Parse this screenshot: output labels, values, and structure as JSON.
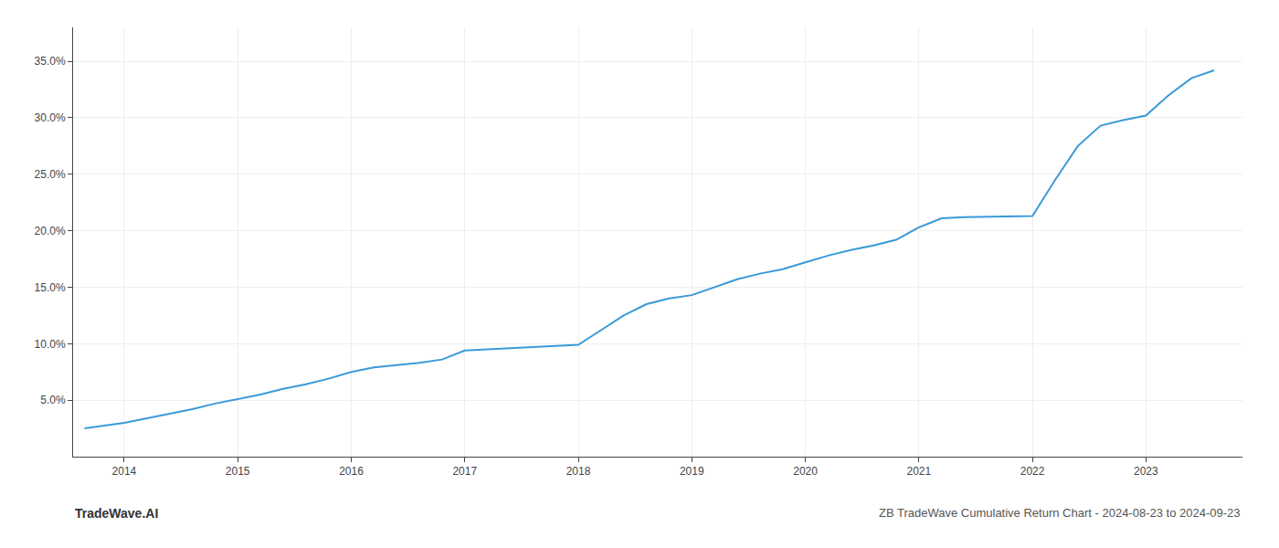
{
  "chart_data": {
    "type": "line",
    "title": "ZB TradeWave Cumulative Return Chart - 2024-08-23 to 2024-09-23",
    "annotations": [
      "TradeWave.AI"
    ],
    "x": [
      2013.65,
      2013.8,
      2014.0,
      2014.2,
      2014.4,
      2014.6,
      2014.8,
      2015.0,
      2015.2,
      2015.4,
      2015.6,
      2015.8,
      2016.0,
      2016.2,
      2016.4,
      2016.6,
      2016.8,
      2017.0,
      2017.2,
      2017.4,
      2017.6,
      2017.8,
      2018.0,
      2018.2,
      2018.4,
      2018.6,
      2018.8,
      2019.0,
      2019.2,
      2019.4,
      2019.6,
      2019.8,
      2020.0,
      2020.2,
      2020.4,
      2020.6,
      2020.8,
      2021.0,
      2021.2,
      2021.4,
      2022.0,
      2022.2,
      2022.4,
      2022.6,
      2022.8,
      2023.0,
      2023.2,
      2023.4,
      2023.6
    ],
    "values": [
      2.5,
      2.7,
      3.0,
      3.4,
      3.8,
      4.2,
      4.7,
      5.1,
      5.5,
      6.0,
      6.4,
      6.9,
      7.5,
      7.9,
      8.1,
      8.3,
      8.6,
      9.4,
      9.5,
      9.6,
      9.7,
      9.8,
      9.9,
      11.2,
      12.5,
      13.5,
      14.0,
      14.3,
      15.0,
      15.7,
      16.2,
      16.6,
      17.2,
      17.8,
      18.3,
      18.7,
      19.2,
      20.3,
      21.1,
      21.2,
      21.3,
      24.5,
      27.5,
      29.3,
      29.8,
      30.2,
      32.0,
      33.5,
      34.2
    ],
    "color": "#3a9ad9",
    "xlim": [
      2013.55,
      2023.85
    ],
    "xticks": [
      2014,
      2015,
      2016,
      2017,
      2018,
      2019,
      2020,
      2021,
      2022,
      2023
    ],
    "ylim": [
      0,
      38
    ],
    "yticks": [
      {
        "value": 5.0,
        "label": "5.0%"
      },
      {
        "value": 10.0,
        "label": "10.0%"
      },
      {
        "value": 15.0,
        "label": "15.0%"
      },
      {
        "value": 20.0,
        "label": "20.0%"
      },
      {
        "value": 25.0,
        "label": "25.0%"
      },
      {
        "value": 30.0,
        "label": "30.0%"
      },
      {
        "value": 35.0,
        "label": "35.0%"
      }
    ],
    "grid": true
  }
}
